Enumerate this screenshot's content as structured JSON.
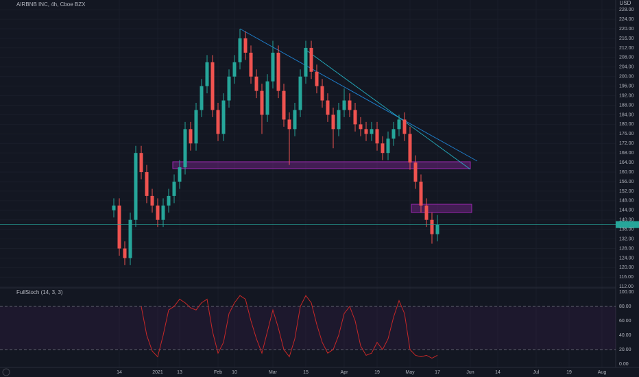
{
  "chart_data": [
    {
      "type": "candlestick",
      "title": "AIRBNB INC, 4h, Cboe BZX",
      "y_label": "USD",
      "up_color": "#26a69a",
      "down_color": "#ef5350",
      "last_price_color": "#26a69a",
      "categories": [
        null,
        "14",
        null,
        null,
        null,
        null,
        null,
        null,
        "2021",
        null,
        null,
        null,
        "13",
        null,
        null,
        null,
        null,
        null,
        null,
        "Feb",
        null,
        null,
        "10",
        null,
        null,
        null,
        null,
        null,
        null,
        "Mar",
        null,
        null,
        null,
        null,
        null,
        "15",
        null,
        null,
        null,
        null,
        null,
        null,
        "Apr",
        null,
        null,
        null,
        null,
        null,
        "19",
        null,
        null,
        null,
        null,
        null,
        "May",
        null,
        null,
        null,
        null,
        "17",
        null,
        null,
        null,
        null,
        null,
        "Jun",
        null,
        null,
        null,
        null,
        "14",
        null,
        null,
        null,
        null,
        null,
        null,
        "Jul",
        null,
        null,
        null,
        null,
        null,
        "19",
        null,
        null,
        null,
        null,
        null,
        "Aug",
        null,
        null
      ],
      "open": [
        144,
        146,
        128,
        124,
        140,
        168,
        160,
        150,
        146,
        140,
        146,
        150,
        156,
        162,
        178,
        172,
        186,
        196,
        206,
        186,
        176,
        190,
        200,
        206,
        216,
        210,
        200,
        194,
        184,
        198,
        210,
        194,
        182,
        178,
        186,
        200,
        212,
        202,
        196,
        190,
        184,
        178,
        186,
        190,
        186,
        180,
        178,
        176,
        178,
        172,
        168,
        174,
        178,
        182,
        176,
        164,
        156,
        146,
        140,
        134,
        null,
        null,
        null,
        null,
        null,
        null,
        null,
        null,
        null,
        null,
        null,
        null,
        null,
        null,
        null,
        null,
        null,
        null,
        null,
        null,
        null,
        null,
        null,
        null,
        null,
        null,
        null,
        null,
        null,
        null,
        null,
        null
      ],
      "high": [
        149,
        149,
        131,
        143,
        171,
        171,
        163,
        153,
        149,
        149,
        153,
        159,
        165,
        181,
        181,
        189,
        199,
        209,
        209,
        189,
        193,
        203,
        209,
        220,
        219,
        213,
        203,
        197,
        201,
        215,
        213,
        197,
        185,
        189,
        203,
        215,
        215,
        205,
        199,
        193,
        187,
        189,
        195,
        193,
        189,
        183,
        181,
        181,
        181,
        175,
        177,
        181,
        184,
        185,
        179,
        167,
        159,
        149,
        143,
        142,
        null,
        null,
        null,
        null,
        null,
        null,
        null,
        null,
        null,
        null,
        null,
        null,
        null,
        null,
        null,
        null,
        null,
        null,
        null,
        null,
        null,
        null,
        null,
        null,
        null,
        null,
        null,
        null,
        null,
        null,
        null,
        null
      ],
      "low": [
        141,
        125,
        121,
        121,
        137,
        157,
        147,
        143,
        137,
        137,
        143,
        147,
        153,
        159,
        169,
        169,
        183,
        193,
        183,
        173,
        173,
        187,
        197,
        203,
        207,
        197,
        191,
        176,
        181,
        195,
        191,
        179,
        163,
        175,
        183,
        197,
        199,
        193,
        187,
        181,
        170,
        175,
        183,
        183,
        177,
        175,
        173,
        173,
        169,
        165,
        165,
        171,
        175,
        173,
        161,
        153,
        143,
        137,
        130,
        131,
        null,
        null,
        null,
        null,
        null,
        null,
        null,
        null,
        null,
        null,
        null,
        null,
        null,
        null,
        null,
        null,
        null,
        null,
        null,
        null,
        null,
        null,
        null,
        null,
        null,
        null,
        null,
        null,
        null,
        null,
        null,
        null
      ],
      "close": [
        146,
        128,
        124,
        140,
        168,
        160,
        150,
        146,
        140,
        146,
        150,
        156,
        162,
        178,
        172,
        186,
        196,
        206,
        186,
        176,
        190,
        200,
        206,
        216,
        210,
        200,
        194,
        184,
        198,
        210,
        194,
        182,
        178,
        186,
        200,
        212,
        202,
        196,
        190,
        184,
        178,
        186,
        190,
        186,
        180,
        178,
        176,
        178,
        172,
        168,
        174,
        178,
        182,
        176,
        164,
        156,
        146,
        140,
        134,
        138,
        null,
        null,
        null,
        null,
        null,
        null,
        null,
        null,
        null,
        null,
        null,
        null,
        null,
        null,
        null,
        null,
        null,
        null,
        null,
        null,
        null,
        null,
        null,
        null,
        null,
        null,
        null,
        null,
        null,
        null,
        null,
        null
      ],
      "ylim": [
        111.5,
        229.2
      ],
      "yticks": [
        {
          "value": 112,
          "label": "112.00"
        },
        {
          "value": 116,
          "label": "116.00"
        },
        {
          "value": 120,
          "label": "120.00"
        },
        {
          "value": 124,
          "label": "124.00"
        },
        {
          "value": 128,
          "label": "128.00"
        },
        {
          "value": 132,
          "label": "132.00"
        },
        {
          "value": 136,
          "label": "136.00"
        },
        {
          "value": 140,
          "label": "140.00"
        },
        {
          "value": 144,
          "label": "144.00"
        },
        {
          "value": 148,
          "label": "148.00"
        },
        {
          "value": 152,
          "label": "152.00"
        },
        {
          "value": 156,
          "label": "156.00"
        },
        {
          "value": 160,
          "label": "160.00"
        },
        {
          "value": 164,
          "label": "164.00"
        },
        {
          "value": 168,
          "label": "168.00"
        },
        {
          "value": 172,
          "label": "172.00"
        },
        {
          "value": 176,
          "label": "176.00"
        },
        {
          "value": 180,
          "label": "180.00"
        },
        {
          "value": 184,
          "label": "184.00"
        },
        {
          "value": 188,
          "label": "188.00"
        },
        {
          "value": 192,
          "label": "192.00"
        },
        {
          "value": 196,
          "label": "196.00"
        },
        {
          "value": 200,
          "label": "200.00"
        },
        {
          "value": 204,
          "label": "204.00"
        },
        {
          "value": 208,
          "label": "208.00"
        },
        {
          "value": 212,
          "label": "212.00"
        },
        {
          "value": 216,
          "label": "216.00"
        },
        {
          "value": 220,
          "label": "220.00"
        },
        {
          "value": 224,
          "label": "224.00"
        },
        {
          "value": 228,
          "label": "228.00"
        }
      ],
      "grid": true
    },
    {
      "type": "line",
      "title": "FullStoch (14, 3, 3)",
      "color": "#c62828",
      "band_color": "rgba(156,39,176,0.08)",
      "values": [
        null,
        null,
        null,
        null,
        null,
        80,
        40,
        18,
        10,
        40,
        75,
        80,
        90,
        85,
        78,
        75,
        85,
        90,
        45,
        15,
        30,
        70,
        85,
        95,
        90,
        60,
        35,
        15,
        45,
        75,
        50,
        20,
        10,
        35,
        80,
        95,
        85,
        55,
        30,
        15,
        20,
        40,
        70,
        80,
        60,
        25,
        12,
        15,
        30,
        20,
        35,
        65,
        88,
        70,
        20,
        12,
        10,
        12,
        8,
        12,
        null,
        null,
        null,
        null,
        null,
        null,
        null,
        null,
        null,
        null,
        null,
        null,
        null,
        null,
        null,
        null,
        null,
        null,
        null,
        null,
        null,
        null,
        null,
        null,
        null,
        null,
        null,
        null,
        null,
        null,
        null,
        null
      ],
      "ylim": [
        -4.8,
        105.7
      ],
      "yticks": [
        {
          "value": 0,
          "label": "0.00"
        },
        {
          "value": 20,
          "label": "20.00"
        },
        {
          "value": 40,
          "label": "40.00"
        },
        {
          "value": 60,
          "label": "60.00"
        },
        {
          "value": 80,
          "label": "80.00"
        },
        {
          "value": 100,
          "label": "100.00"
        }
      ],
      "band": [
        20,
        80
      ]
    }
  ]
}
